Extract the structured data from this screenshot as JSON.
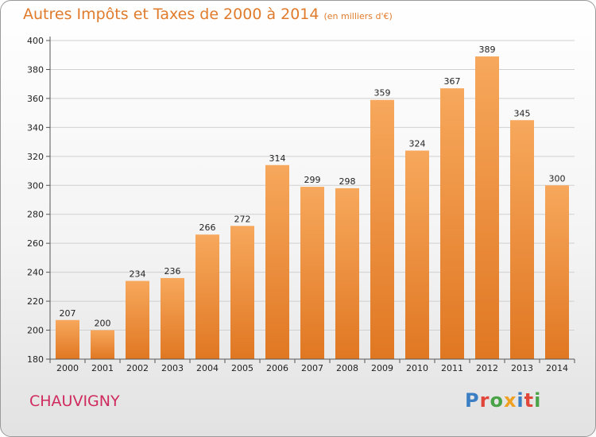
{
  "header": {
    "title": "Autres Impôts et Taxes de 2000 à 2014",
    "subtitle": "(en milliers d'€)"
  },
  "footer": {
    "city": "CHAUVIGNY",
    "logo": "Proxiti"
  },
  "colors": {
    "bar": "#f0852c",
    "bar_light": "#f7a85c",
    "title": "#e07b2c",
    "city": "#cf2b5f"
  },
  "chart_data": {
    "type": "bar",
    "title": "Autres Impôts et Taxes de 2000 à 2014",
    "subtitle": "(en milliers d'€)",
    "xlabel": "",
    "ylabel": "",
    "categories": [
      "2000",
      "2001",
      "2002",
      "2003",
      "2004",
      "2005",
      "2006",
      "2007",
      "2008",
      "2009",
      "2010",
      "2011",
      "2012",
      "2013",
      "2014"
    ],
    "values": [
      207,
      200,
      234,
      236,
      266,
      272,
      314,
      299,
      298,
      359,
      324,
      367,
      389,
      345,
      300
    ],
    "yticks": [
      180,
      200,
      220,
      240,
      260,
      280,
      300,
      320,
      340,
      360,
      380,
      400
    ],
    "ylim": [
      180,
      400
    ],
    "grid": true,
    "legend": "none"
  }
}
